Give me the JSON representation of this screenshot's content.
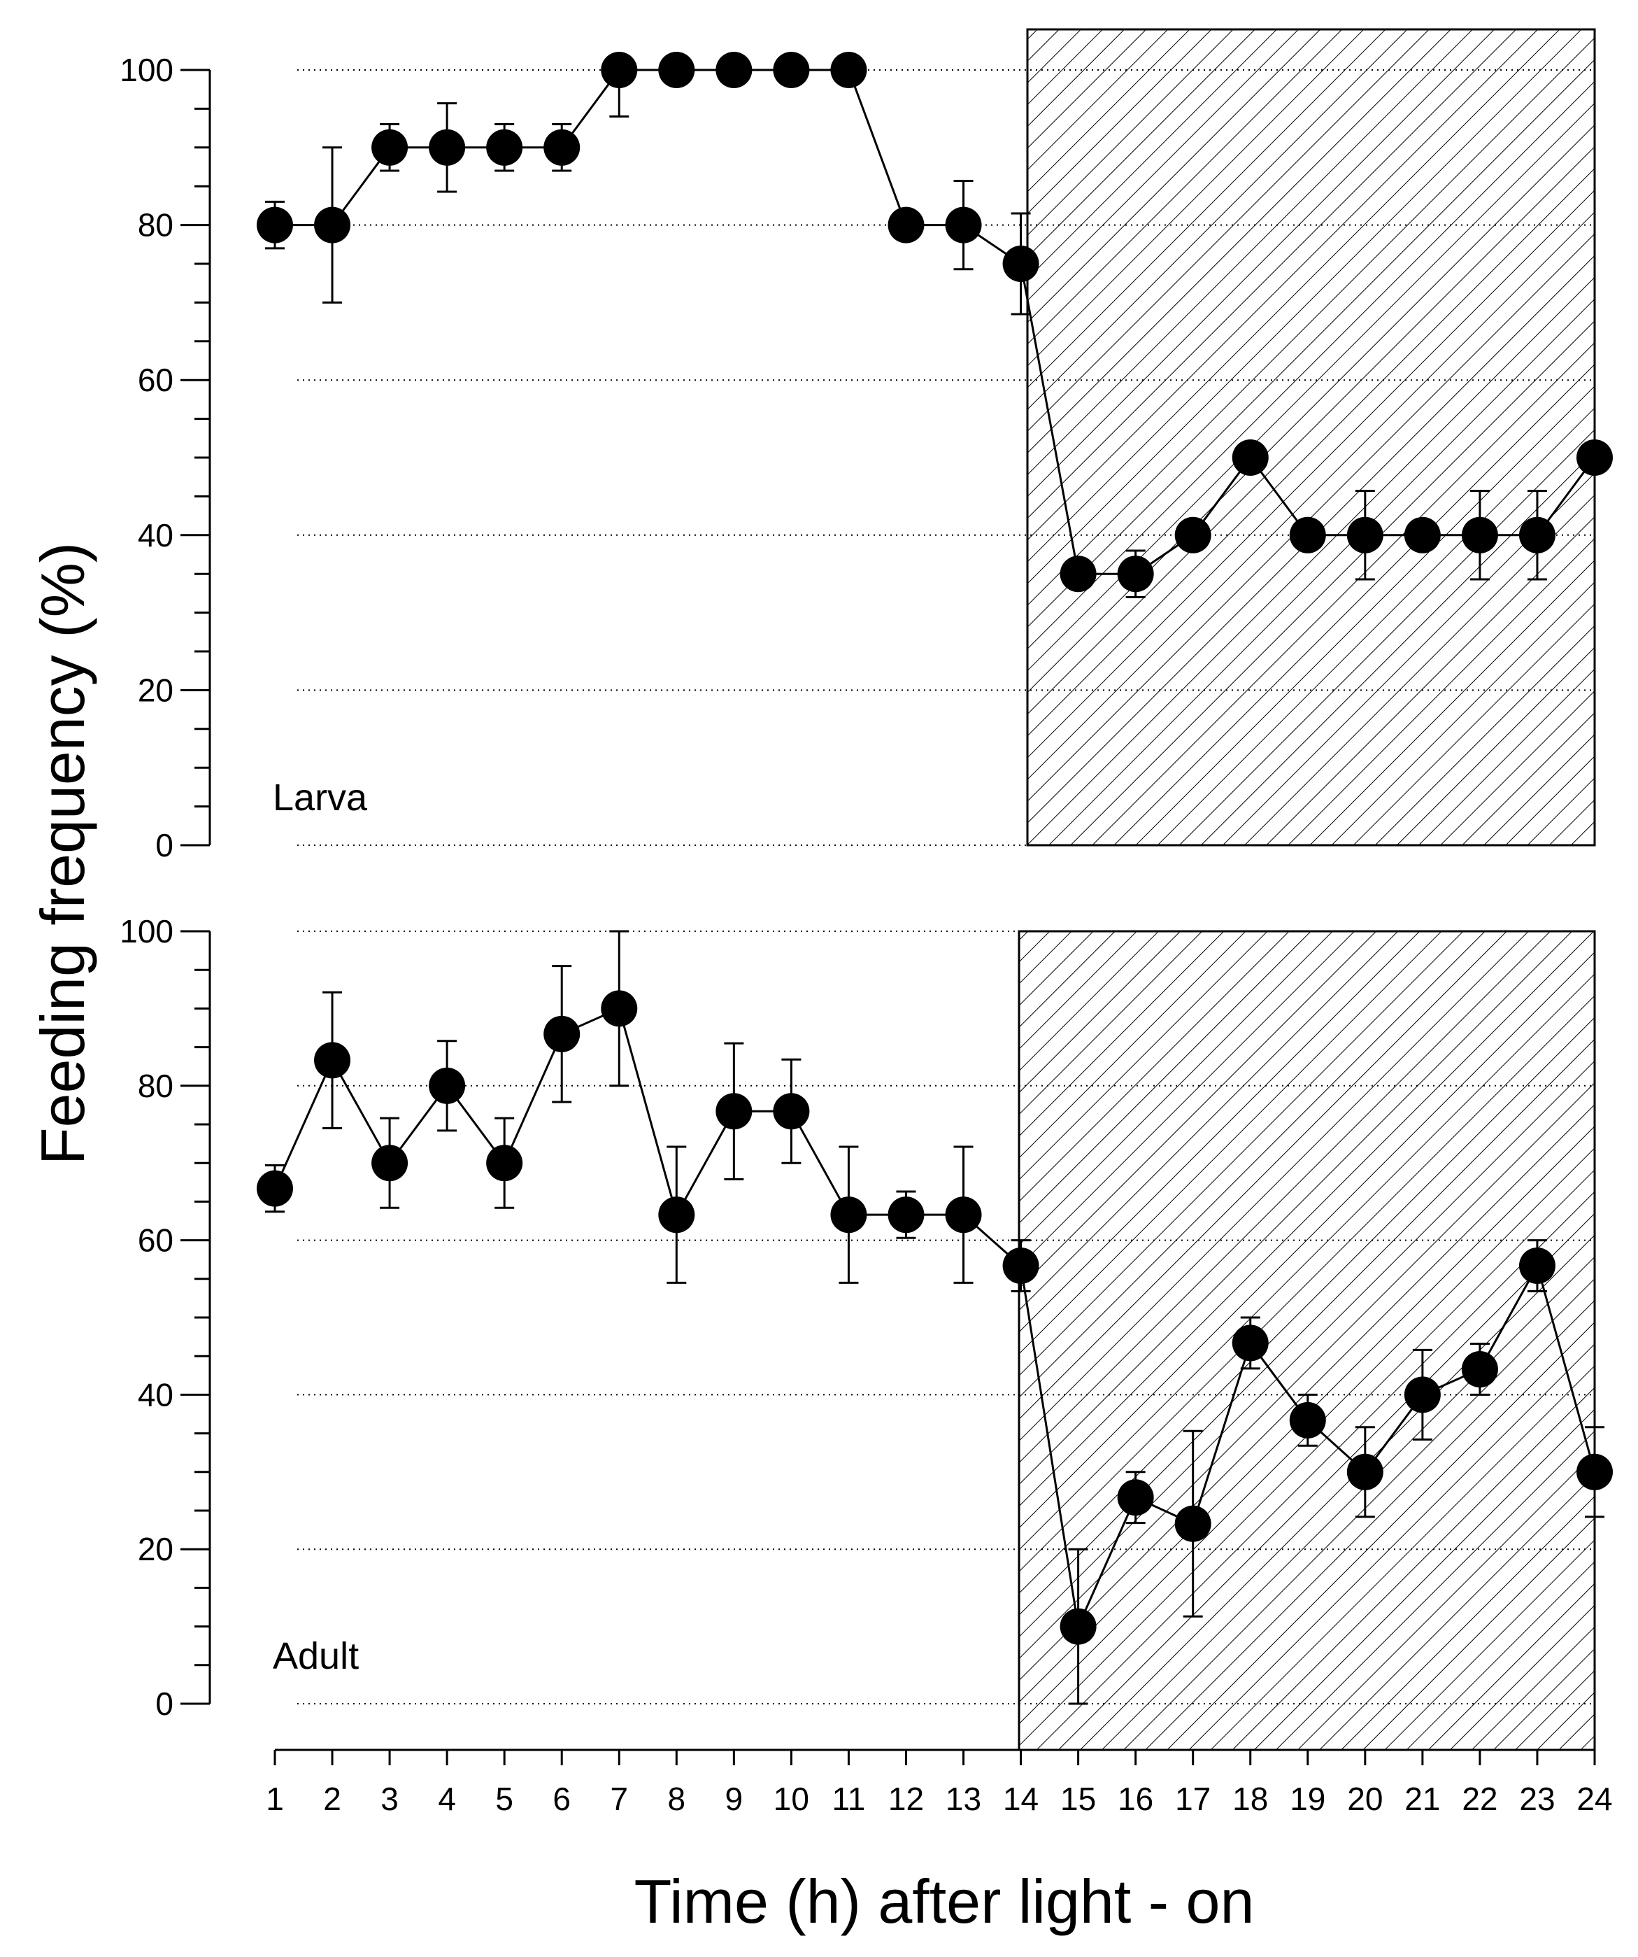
{
  "chart_data": {
    "type": "line",
    "xlabel": "Time (h) after light - on",
    "ylabel": "Feeding frequency (%)",
    "x": [
      1,
      2,
      3,
      4,
      5,
      6,
      7,
      8,
      9,
      10,
      11,
      12,
      13,
      14,
      15,
      16,
      17,
      18,
      19,
      20,
      21,
      22,
      23,
      24
    ],
    "x_tick_labels": [
      "1",
      "2",
      "3",
      "4",
      "5",
      "6",
      "7",
      "8",
      "9",
      "10",
      "11",
      "12",
      "13",
      "14",
      "15",
      "16",
      "17",
      "18",
      "19",
      "20",
      "21",
      "22",
      "23",
      "24"
    ],
    "ylim": [
      0,
      100
    ],
    "y_ticks": [
      0,
      20,
      40,
      60,
      80,
      100
    ],
    "y_tick_labels": [
      "0",
      "20",
      "40",
      "60",
      "80",
      "100"
    ],
    "grid": "dotted horizontal",
    "dark_period": [
      14,
      24
    ],
    "panels": [
      {
        "label": "Larva",
        "series": [
          {
            "name": "Larva",
            "values": [
              80,
              80,
              90,
              90,
              90,
              90,
              100,
              100,
              100,
              100,
              100,
              80,
              80,
              75,
              35,
              35,
              40,
              50,
              40,
              40,
              40,
              40,
              40,
              50
            ],
            "errors": [
              3,
              10,
              3,
              5.7,
              3,
              3,
              6,
              0,
              0,
              0,
              0,
              0,
              5.7,
              6.5,
              0,
              3,
              0,
              0,
              0,
              5.7,
              0,
              5.7,
              5.7,
              0
            ]
          }
        ]
      },
      {
        "label": "Adult",
        "series": [
          {
            "name": "Adult",
            "values": [
              66.7,
              83.3,
              70,
              80,
              70,
              86.7,
              90,
              63.3,
              76.7,
              76.7,
              63.3,
              63.3,
              63.3,
              56.7,
              10,
              26.7,
              23.3,
              46.7,
              36.7,
              30,
              40,
              43.3,
              56.7,
              30
            ],
            "errors": [
              3,
              8.8,
              5.8,
              5.8,
              5.8,
              8.8,
              10,
              8.8,
              8.8,
              6.7,
              8.8,
              3,
              8.8,
              3.3,
              10,
              3.3,
              12,
              3.3,
              3.3,
              5.8,
              5.8,
              3.3,
              3.3,
              5.8
            ]
          }
        ]
      }
    ]
  }
}
